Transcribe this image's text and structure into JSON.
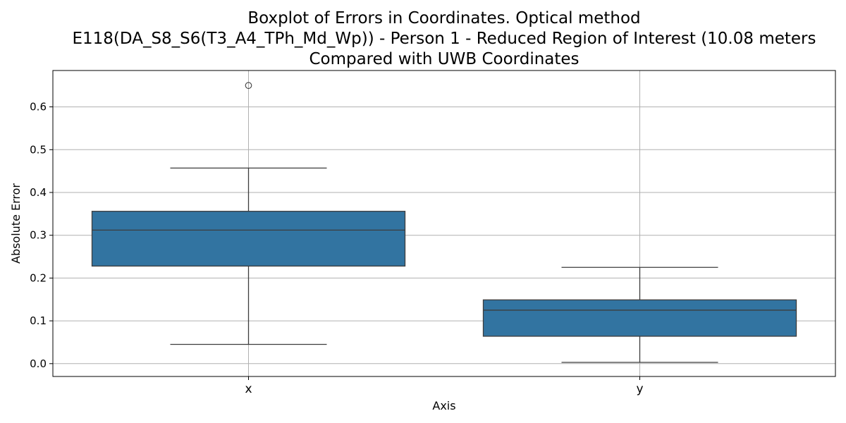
{
  "chart_data": {
    "type": "box",
    "title_lines": [
      "Boxplot of Errors in Coordinates. Optical method",
      "E118(DA_S8_S6(T3_A4_TPh_Md_Wp)) - Person 1 - Reduced Region of Interest (10.08 meters",
      "Compared with UWB Coordinates"
    ],
    "xlabel": "Axis",
    "ylabel": "Absolute Error",
    "categories": [
      "x",
      "y"
    ],
    "ylim": [
      -0.03,
      0.685
    ],
    "yticks": [
      0.0,
      0.1,
      0.2,
      0.3,
      0.4,
      0.5,
      0.6
    ],
    "ytick_labels": [
      "0.0",
      "0.1",
      "0.2",
      "0.3",
      "0.4",
      "0.5",
      "0.6"
    ],
    "grid": true,
    "box_color": "#3274a1",
    "boxes": [
      {
        "category": "x",
        "whisker_low": 0.045,
        "q1": 0.228,
        "median": 0.312,
        "q3": 0.356,
        "whisker_high": 0.457,
        "outliers": [
          0.65
        ]
      },
      {
        "category": "y",
        "whisker_low": 0.003,
        "q1": 0.064,
        "median": 0.125,
        "q3": 0.149,
        "whisker_high": 0.225,
        "outliers": []
      }
    ]
  }
}
